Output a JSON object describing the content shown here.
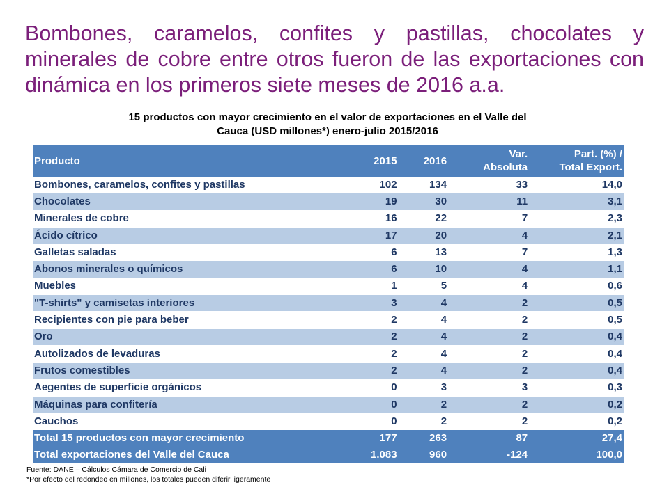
{
  "title": "Bombones, caramelos, confites y pastillas, chocolates y minerales de cobre entre otros fueron de las exportaciones con dinámica en los primeros siete meses de 2016 a.a.",
  "table_caption_line1": "15 productos con mayor crecimiento en el valor de exportaciones en el Valle del",
  "table_caption_line2": "Cauca (USD millones*) enero-julio 2015/2016",
  "table": {
    "headers": {
      "producto": "Producto",
      "y2015": "2015",
      "y2016": "2016",
      "var_line1": "Var.",
      "var_line2": "Absoluta",
      "part_line1": "Part. (%) /",
      "part_line2": "Total Export."
    },
    "rows": [
      {
        "producto": "Bombones, caramelos, confites y pastillas",
        "y2015": "102",
        "y2016": "134",
        "var": "33",
        "part": "14,0"
      },
      {
        "producto": "Chocolates",
        "y2015": "19",
        "y2016": "30",
        "var": "11",
        "part": "3,1"
      },
      {
        "producto": "Minerales de cobre",
        "y2015": "16",
        "y2016": "22",
        "var": "7",
        "part": "2,3"
      },
      {
        "producto": "Ácido cítrico",
        "y2015": "17",
        "y2016": "20",
        "var": "4",
        "part": "2,1"
      },
      {
        "producto": "Galletas saladas",
        "y2015": "6",
        "y2016": "13",
        "var": "7",
        "part": "1,3"
      },
      {
        "producto": "Abonos minerales o químicos",
        "y2015": "6",
        "y2016": "10",
        "var": "4",
        "part": "1,1"
      },
      {
        "producto": "Muebles",
        "y2015": "1",
        "y2016": "5",
        "var": "4",
        "part": "0,6"
      },
      {
        "producto": "\"T-shirts\" y camisetas interiores",
        "y2015": "3",
        "y2016": "4",
        "var": "2",
        "part": "0,5"
      },
      {
        "producto": "Recipientes con pie para beber",
        "y2015": "2",
        "y2016": "4",
        "var": "2",
        "part": "0,5"
      },
      {
        "producto": "Oro",
        "y2015": "2",
        "y2016": "4",
        "var": "2",
        "part": "0,4"
      },
      {
        "producto": "Autolizados de levaduras",
        "y2015": "2",
        "y2016": "4",
        "var": "2",
        "part": "0,4"
      },
      {
        "producto": "Frutos comestibles",
        "y2015": "2",
        "y2016": "4",
        "var": "2",
        "part": "0,4"
      },
      {
        "producto": "Aegentes de superficie orgánicos",
        "y2015": "0",
        "y2016": "3",
        "var": "3",
        "part": "0,3"
      },
      {
        "producto": "Máquinas para confitería",
        "y2015": "0",
        "y2016": "2",
        "var": "2",
        "part": "0,2"
      },
      {
        "producto": "Cauchos",
        "y2015": "0",
        "y2016": "2",
        "var": "2",
        "part": "0,2"
      }
    ],
    "totals": [
      {
        "producto": "Total 15 productos con mayor crecimiento",
        "y2015": "177",
        "y2016": "263",
        "var": "87",
        "part": "27,4"
      },
      {
        "producto": "Total exportaciones del Valle del Cauca",
        "y2015": "1.083",
        "y2016": "960",
        "var": "-124",
        "part": "100,0"
      }
    ]
  },
  "footnote_line1": "Fuente: DANE – Cálculos Cámara de Comercio de Cali",
  "footnote_line2": "*Por efecto del redondeo en millones, los totales pueden diferir ligeramente",
  "colors": {
    "title": "#7B1F7A",
    "header_bg": "#4F81BD",
    "band": "#B8CCE4",
    "text": "#1F3864"
  }
}
